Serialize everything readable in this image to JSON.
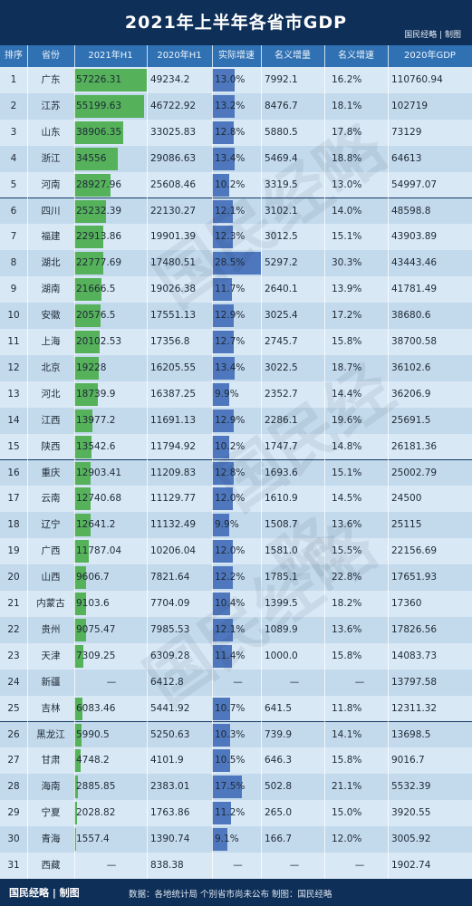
{
  "title": "2021年上半年各省市GDP",
  "brand_top": "国民经略 | 制图",
  "brand_bottom": "国民经略 | 制图",
  "watermark": "国民经略",
  "source": "数据：各地统计局 个别省市尚未公布  制图：国民经略",
  "headers": [
    "排序",
    "省份",
    "2021年H1",
    "2020年H1",
    "实际增速",
    "名义增量",
    "名义增速",
    "2020年GDP"
  ],
  "colors": {
    "gdp_bar": "#55b15a",
    "rate_bar": "#4f77bd",
    "title_bg": "#0e2f58",
    "header_bg": "#2f71b3"
  },
  "chart_data": {
    "type": "table",
    "gdp_bar_max": 57226.31,
    "rate_bar_max": 28.5,
    "rows": [
      {
        "rank": "1",
        "province": "广东",
        "h1_2021": "57226.31",
        "h1_2020": "49234.2",
        "real_growth": "13.0%",
        "nominal_increase": "7992.1",
        "nominal_growth": "16.2%",
        "gdp_2020": "110760.94",
        "h1_value": 57226.31,
        "growth_value": 13.0
      },
      {
        "rank": "2",
        "province": "江苏",
        "h1_2021": "55199.63",
        "h1_2020": "46722.92",
        "real_growth": "13.2%",
        "nominal_increase": "8476.7",
        "nominal_growth": "18.1%",
        "gdp_2020": "102719",
        "h1_value": 55199.63,
        "growth_value": 13.2
      },
      {
        "rank": "3",
        "province": "山东",
        "h1_2021": "38906.35",
        "h1_2020": "33025.83",
        "real_growth": "12.8%",
        "nominal_increase": "5880.5",
        "nominal_growth": "17.8%",
        "gdp_2020": "73129",
        "h1_value": 38906.35,
        "growth_value": 12.8
      },
      {
        "rank": "4",
        "province": "浙江",
        "h1_2021": "34556",
        "h1_2020": "29086.63",
        "real_growth": "13.4%",
        "nominal_increase": "5469.4",
        "nominal_growth": "18.8%",
        "gdp_2020": "64613",
        "h1_value": 34556,
        "growth_value": 13.4
      },
      {
        "rank": "5",
        "province": "河南",
        "h1_2021": "28927.96",
        "h1_2020": "25608.46",
        "real_growth": "10.2%",
        "nominal_increase": "3319.5",
        "nominal_growth": "13.0%",
        "gdp_2020": "54997.07",
        "h1_value": 28927.96,
        "growth_value": 10.2
      },
      {
        "rank": "6",
        "province": "四川",
        "h1_2021": "25232.39",
        "h1_2020": "22130.27",
        "real_growth": "12.1%",
        "nominal_increase": "3102.1",
        "nominal_growth": "14.0%",
        "gdp_2020": "48598.8",
        "h1_value": 25232.39,
        "growth_value": 12.1
      },
      {
        "rank": "7",
        "province": "福建",
        "h1_2021": "22913.86",
        "h1_2020": "19901.39",
        "real_growth": "12.3%",
        "nominal_increase": "3012.5",
        "nominal_growth": "15.1%",
        "gdp_2020": "43903.89",
        "h1_value": 22913.86,
        "growth_value": 12.3
      },
      {
        "rank": "8",
        "province": "湖北",
        "h1_2021": "22777.69",
        "h1_2020": "17480.51",
        "real_growth": "28.5%",
        "nominal_increase": "5297.2",
        "nominal_growth": "30.3%",
        "gdp_2020": "43443.46",
        "h1_value": 22777.69,
        "growth_value": 28.5
      },
      {
        "rank": "9",
        "province": "湖南",
        "h1_2021": "21666.5",
        "h1_2020": "19026.38",
        "real_growth": "11.7%",
        "nominal_increase": "2640.1",
        "nominal_growth": "13.9%",
        "gdp_2020": "41781.49",
        "h1_value": 21666.5,
        "growth_value": 11.7
      },
      {
        "rank": "10",
        "province": "安徽",
        "h1_2021": "20576.5",
        "h1_2020": "17551.13",
        "real_growth": "12.9%",
        "nominal_increase": "3025.4",
        "nominal_growth": "17.2%",
        "gdp_2020": "38680.6",
        "h1_value": 20576.5,
        "growth_value": 12.9
      },
      {
        "rank": "11",
        "province": "上海",
        "h1_2021": "20102.53",
        "h1_2020": "17356.8",
        "real_growth": "12.7%",
        "nominal_increase": "2745.7",
        "nominal_growth": "15.8%",
        "gdp_2020": "38700.58",
        "h1_value": 20102.53,
        "growth_value": 12.7
      },
      {
        "rank": "12",
        "province": "北京",
        "h1_2021": "19228",
        "h1_2020": "16205.55",
        "real_growth": "13.4%",
        "nominal_increase": "3022.5",
        "nominal_growth": "18.7%",
        "gdp_2020": "36102.6",
        "h1_value": 19228,
        "growth_value": 13.4
      },
      {
        "rank": "13",
        "province": "河北",
        "h1_2021": "18739.9",
        "h1_2020": "16387.25",
        "real_growth": "9.9%",
        "nominal_increase": "2352.7",
        "nominal_growth": "14.4%",
        "gdp_2020": "36206.9",
        "h1_value": 18739.9,
        "growth_value": 9.9
      },
      {
        "rank": "14",
        "province": "江西",
        "h1_2021": "13977.2",
        "h1_2020": "11691.13",
        "real_growth": "12.9%",
        "nominal_increase": "2286.1",
        "nominal_growth": "19.6%",
        "gdp_2020": "25691.5",
        "h1_value": 13977.2,
        "growth_value": 12.9
      },
      {
        "rank": "15",
        "province": "陕西",
        "h1_2021": "13542.6",
        "h1_2020": "11794.92",
        "real_growth": "10.2%",
        "nominal_increase": "1747.7",
        "nominal_growth": "14.8%",
        "gdp_2020": "26181.36",
        "h1_value": 13542.6,
        "growth_value": 10.2
      },
      {
        "rank": "16",
        "province": "重庆",
        "h1_2021": "12903.41",
        "h1_2020": "11209.83",
        "real_growth": "12.8%",
        "nominal_increase": "1693.6",
        "nominal_growth": "15.1%",
        "gdp_2020": "25002.79",
        "h1_value": 12903.41,
        "growth_value": 12.8
      },
      {
        "rank": "17",
        "province": "云南",
        "h1_2021": "12740.68",
        "h1_2020": "11129.77",
        "real_growth": "12.0%",
        "nominal_increase": "1610.9",
        "nominal_growth": "14.5%",
        "gdp_2020": "24500",
        "h1_value": 12740.68,
        "growth_value": 12.0
      },
      {
        "rank": "18",
        "province": "辽宁",
        "h1_2021": "12641.2",
        "h1_2020": "11132.49",
        "real_growth": "9.9%",
        "nominal_increase": "1508.7",
        "nominal_growth": "13.6%",
        "gdp_2020": "25115",
        "h1_value": 12641.2,
        "growth_value": 9.9
      },
      {
        "rank": "19",
        "province": "广西",
        "h1_2021": "11787.04",
        "h1_2020": "10206.04",
        "real_growth": "12.0%",
        "nominal_increase": "1581.0",
        "nominal_growth": "15.5%",
        "gdp_2020": "22156.69",
        "h1_value": 11787.04,
        "growth_value": 12.0
      },
      {
        "rank": "20",
        "province": "山西",
        "h1_2021": "9606.7",
        "h1_2020": "7821.64",
        "real_growth": "12.2%",
        "nominal_increase": "1785.1",
        "nominal_growth": "22.8%",
        "gdp_2020": "17651.93",
        "h1_value": 9606.7,
        "growth_value": 12.2
      },
      {
        "rank": "21",
        "province": "内蒙古",
        "h1_2021": "9103.6",
        "h1_2020": "7704.09",
        "real_growth": "10.4%",
        "nominal_increase": "1399.5",
        "nominal_growth": "18.2%",
        "gdp_2020": "17360",
        "h1_value": 9103.6,
        "growth_value": 10.4
      },
      {
        "rank": "22",
        "province": "贵州",
        "h1_2021": "9075.47",
        "h1_2020": "7985.53",
        "real_growth": "12.1%",
        "nominal_increase": "1089.9",
        "nominal_growth": "13.6%",
        "gdp_2020": "17826.56",
        "h1_value": 9075.47,
        "growth_value": 12.1
      },
      {
        "rank": "23",
        "province": "天津",
        "h1_2021": "7309.25",
        "h1_2020": "6309.28",
        "real_growth": "11.4%",
        "nominal_increase": "1000.0",
        "nominal_growth": "15.8%",
        "gdp_2020": "14083.73",
        "h1_value": 7309.25,
        "growth_value": 11.4
      },
      {
        "rank": "24",
        "province": "新疆",
        "h1_2021": "—",
        "h1_2020": "6412.8",
        "real_growth": "—",
        "nominal_increase": "—",
        "nominal_growth": "—",
        "gdp_2020": "13797.58",
        "h1_value": null,
        "growth_value": null
      },
      {
        "rank": "25",
        "province": "吉林",
        "h1_2021": "6083.46",
        "h1_2020": "5441.92",
        "real_growth": "10.7%",
        "nominal_increase": "641.5",
        "nominal_growth": "11.8%",
        "gdp_2020": "12311.32",
        "h1_value": 6083.46,
        "growth_value": 10.7
      },
      {
        "rank": "26",
        "province": "黑龙江",
        "h1_2021": "5990.5",
        "h1_2020": "5250.63",
        "real_growth": "10.3%",
        "nominal_increase": "739.9",
        "nominal_growth": "14.1%",
        "gdp_2020": "13698.5",
        "h1_value": 5990.5,
        "growth_value": 10.3
      },
      {
        "rank": "27",
        "province": "甘肃",
        "h1_2021": "4748.2",
        "h1_2020": "4101.9",
        "real_growth": "10.5%",
        "nominal_increase": "646.3",
        "nominal_growth": "15.8%",
        "gdp_2020": "9016.7",
        "h1_value": 4748.2,
        "growth_value": 10.5
      },
      {
        "rank": "28",
        "province": "海南",
        "h1_2021": "2885.85",
        "h1_2020": "2383.01",
        "real_growth": "17.5%",
        "nominal_increase": "502.8",
        "nominal_growth": "21.1%",
        "gdp_2020": "5532.39",
        "h1_value": 2885.85,
        "growth_value": 17.5
      },
      {
        "rank": "29",
        "province": "宁夏",
        "h1_2021": "2028.82",
        "h1_2020": "1763.86",
        "real_growth": "11.2%",
        "nominal_increase": "265.0",
        "nominal_growth": "15.0%",
        "gdp_2020": "3920.55",
        "h1_value": 2028.82,
        "growth_value": 11.2
      },
      {
        "rank": "30",
        "province": "青海",
        "h1_2021": "1557.4",
        "h1_2020": "1390.74",
        "real_growth": "9.1%",
        "nominal_increase": "166.7",
        "nominal_growth": "12.0%",
        "gdp_2020": "3005.92",
        "h1_value": 1557.4,
        "growth_value": 9.1
      },
      {
        "rank": "31",
        "province": "西藏",
        "h1_2021": "—",
        "h1_2020": "838.38",
        "real_growth": "—",
        "nominal_increase": "—",
        "nominal_growth": "—",
        "gdp_2020": "1902.74",
        "h1_value": null,
        "growth_value": null
      }
    ]
  }
}
